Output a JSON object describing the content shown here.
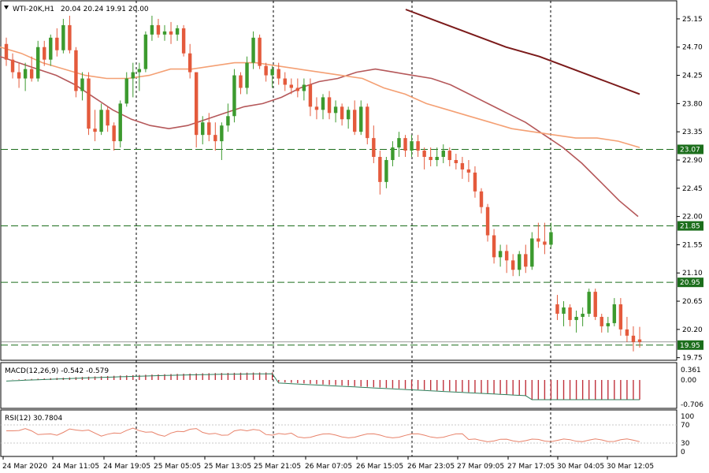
{
  "header": {
    "symbol_label": "WTI-20K,H1",
    "ohlc": "20.04 20.24 19.91 20.00"
  },
  "colors": {
    "bull": "#3c9a2e",
    "bear": "#e45a3c",
    "ma_fast": "#b5585a",
    "ma_mid": "#f4a074",
    "ma_slow": "#7b1a1a",
    "level": "#1c6e1c",
    "rsi": "#e8826a",
    "macd_hist": "#c0323c",
    "macd_signal": "#2e7d5a"
  },
  "macd": {
    "label": "MACD(12,26,9) -0.542 -0.579",
    "ticks": [
      "0.361",
      "0.00",
      "-0.706"
    ]
  },
  "rsi": {
    "label": "RSI(12) 30.7804",
    "ticks": [
      "100",
      "70",
      "30",
      "0"
    ]
  },
  "chart_data": {
    "type": "candlestick",
    "timeframe": "H1",
    "ylim": [
      19.75,
      25.3
    ],
    "y_ticks": [
      "25.15",
      "24.70",
      "24.25",
      "23.80",
      "23.35",
      "22.90",
      "22.45",
      "22.00",
      "21.55",
      "21.10",
      "20.65",
      "20.20",
      "19.75"
    ],
    "x_ticks": [
      "24 Mar 2020",
      "24 Mar 11:05",
      "24 Mar 19:05",
      "25 Mar 05:05",
      "25 Mar 13:05",
      "25 Mar 21:05",
      "26 Mar 07:05",
      "26 Mar 15:05",
      "26 Mar 23:05",
      "27 Mar 09:05",
      "27 Mar 17:05",
      "30 Mar 04:05",
      "30 Mar 12:05"
    ],
    "levels": [
      {
        "label": "23.07",
        "value": 23.07
      },
      {
        "label": "21.85",
        "value": 21.85
      },
      {
        "label": "20.95",
        "value": 20.95
      },
      {
        "label": "19.95",
        "value": 19.95
      }
    ],
    "candles": [
      [
        24.75,
        24.85,
        24.4,
        24.5
      ],
      [
        24.5,
        24.6,
        24.2,
        24.3
      ],
      [
        24.3,
        24.45,
        24.05,
        24.2
      ],
      [
        24.2,
        24.45,
        24.0,
        24.35
      ],
      [
        24.35,
        24.55,
        24.15,
        24.2
      ],
      [
        24.2,
        24.8,
        24.15,
        24.7
      ],
      [
        24.7,
        24.8,
        24.4,
        24.5
      ],
      [
        24.5,
        24.9,
        24.4,
        24.85
      ],
      [
        24.85,
        25.0,
        24.55,
        24.65
      ],
      [
        24.65,
        25.15,
        24.6,
        25.05
      ],
      [
        25.05,
        25.2,
        24.6,
        24.65
      ],
      [
        24.65,
        24.7,
        23.9,
        24.0
      ],
      [
        24.0,
        24.3,
        23.85,
        24.2
      ],
      [
        24.2,
        24.3,
        23.3,
        23.4
      ],
      [
        23.4,
        23.7,
        23.2,
        23.35
      ],
      [
        23.35,
        23.8,
        23.3,
        23.7
      ],
      [
        23.7,
        23.75,
        23.35,
        23.45
      ],
      [
        23.45,
        23.5,
        23.05,
        23.2
      ],
      [
        23.2,
        23.85,
        23.1,
        23.8
      ],
      [
        23.8,
        24.3,
        23.75,
        24.2
      ],
      [
        24.2,
        24.45,
        23.9,
        24.3
      ],
      [
        24.3,
        24.45,
        24.0,
        24.35
      ],
      [
        24.35,
        24.95,
        24.3,
        24.9
      ],
      [
        24.9,
        25.2,
        24.8,
        25.05
      ],
      [
        25.05,
        25.15,
        24.85,
        24.9
      ],
      [
        24.9,
        25.05,
        24.8,
        24.95
      ],
      [
        24.95,
        25.1,
        24.75,
        24.9
      ],
      [
        24.9,
        25.05,
        24.8,
        25.0
      ],
      [
        25.0,
        25.05,
        24.55,
        24.6
      ],
      [
        24.6,
        24.75,
        24.2,
        24.3
      ],
      [
        24.3,
        24.3,
        23.1,
        23.3
      ],
      [
        23.3,
        23.6,
        23.15,
        23.5
      ],
      [
        23.5,
        23.65,
        23.2,
        23.3
      ],
      [
        23.3,
        23.5,
        23.05,
        23.2
      ],
      [
        23.2,
        23.5,
        22.9,
        23.45
      ],
      [
        23.45,
        23.8,
        23.35,
        23.6
      ],
      [
        23.6,
        24.35,
        23.5,
        24.25
      ],
      [
        24.25,
        24.3,
        23.95,
        24.05
      ],
      [
        24.05,
        24.55,
        23.95,
        24.45
      ],
      [
        24.45,
        24.95,
        24.35,
        24.85
      ],
      [
        24.85,
        24.9,
        24.35,
        24.4
      ],
      [
        24.4,
        24.45,
        24.15,
        24.25
      ],
      [
        24.25,
        24.4,
        24.05,
        24.35
      ],
      [
        24.35,
        24.45,
        24.1,
        24.2
      ],
      [
        24.2,
        24.3,
        24.0,
        24.1
      ],
      [
        24.1,
        24.2,
        23.95,
        24.05
      ],
      [
        24.05,
        24.2,
        23.9,
        24.0
      ],
      [
        24.0,
        24.2,
        23.85,
        24.1
      ],
      [
        24.1,
        24.2,
        23.6,
        23.75
      ],
      [
        23.75,
        23.9,
        23.55,
        23.7
      ],
      [
        23.7,
        23.95,
        23.55,
        23.9
      ],
      [
        23.9,
        24.0,
        23.55,
        23.65
      ],
      [
        23.65,
        23.85,
        23.5,
        23.75
      ],
      [
        23.75,
        23.8,
        23.45,
        23.55
      ],
      [
        23.55,
        23.75,
        23.4,
        23.7
      ],
      [
        23.7,
        23.85,
        23.3,
        23.35
      ],
      [
        23.35,
        23.85,
        23.3,
        23.75
      ],
      [
        23.75,
        23.8,
        23.15,
        23.25
      ],
      [
        23.25,
        23.45,
        22.85,
        22.95
      ],
      [
        22.95,
        23.05,
        22.35,
        22.55
      ],
      [
        22.55,
        22.95,
        22.45,
        22.9
      ],
      [
        22.9,
        23.2,
        22.8,
        23.1
      ],
      [
        23.1,
        23.35,
        22.95,
        23.25
      ],
      [
        23.25,
        23.3,
        22.95,
        23.05
      ],
      [
        23.05,
        23.3,
        22.95,
        23.2
      ],
      [
        23.2,
        23.3,
        22.95,
        23.05
      ],
      [
        23.05,
        23.1,
        22.75,
        22.95
      ],
      [
        22.95,
        23.1,
        22.8,
        22.9
      ],
      [
        22.9,
        23.1,
        22.8,
        22.95
      ],
      [
        22.95,
        23.15,
        22.85,
        23.05
      ],
      [
        23.05,
        23.1,
        22.8,
        22.9
      ],
      [
        22.9,
        23.0,
        22.75,
        22.85
      ],
      [
        22.85,
        22.95,
        22.6,
        22.75
      ],
      [
        22.75,
        22.9,
        22.55,
        22.7
      ],
      [
        22.7,
        22.8,
        22.3,
        22.4
      ],
      [
        22.4,
        22.45,
        22.05,
        22.15
      ],
      [
        22.15,
        22.2,
        21.6,
        21.7
      ],
      [
        21.7,
        21.8,
        21.25,
        21.35
      ],
      [
        21.35,
        21.55,
        21.2,
        21.45
      ],
      [
        21.45,
        21.55,
        21.1,
        21.3
      ],
      [
        21.3,
        21.4,
        21.05,
        21.15
      ],
      [
        21.15,
        21.45,
        21.05,
        21.4
      ],
      [
        21.4,
        21.55,
        21.1,
        21.2
      ],
      [
        21.2,
        21.75,
        21.15,
        21.65
      ],
      [
        21.65,
        21.9,
        21.5,
        21.6
      ],
      [
        21.6,
        21.9,
        21.4,
        21.55
      ],
      [
        21.55,
        21.9,
        21.5,
        21.75
      ],
      [
        20.6,
        20.75,
        20.35,
        20.45
      ],
      [
        20.45,
        20.65,
        20.25,
        20.55
      ],
      [
        20.55,
        20.6,
        20.25,
        20.35
      ],
      [
        20.35,
        20.5,
        20.15,
        20.4
      ],
      [
        20.4,
        20.55,
        20.25,
        20.45
      ],
      [
        20.45,
        20.85,
        20.4,
        20.8
      ],
      [
        20.8,
        20.85,
        20.35,
        20.4
      ],
      [
        20.4,
        20.45,
        20.15,
        20.25
      ],
      [
        20.25,
        20.4,
        20.15,
        20.3
      ],
      [
        20.3,
        20.7,
        20.25,
        20.6
      ],
      [
        20.6,
        20.7,
        20.1,
        20.2
      ],
      [
        20.2,
        20.4,
        20.0,
        20.1
      ],
      [
        20.1,
        20.25,
        19.85,
        20.0
      ],
      [
        20.04,
        20.24,
        19.91,
        20.0
      ]
    ],
    "series": [
      {
        "values": [
          24.55,
          24.45,
          24.35,
          24.25,
          24.1,
          23.9,
          23.7,
          23.55,
          23.45,
          23.4,
          23.45,
          23.55,
          23.65,
          23.75,
          23.8,
          23.9,
          24.05,
          24.15,
          24.2,
          24.3,
          24.35,
          24.3,
          24.25,
          24.2,
          24.1,
          23.95,
          23.8,
          23.65,
          23.5,
          23.3,
          23.1,
          22.85,
          22.55,
          22.25,
          22.0
        ]
      },
      {
        "values": [
          24.7,
          24.6,
          24.45,
          24.35,
          24.25,
          24.2,
          24.2,
          24.25,
          24.35,
          24.35,
          24.4,
          24.45,
          24.45,
          24.4,
          24.35,
          24.3,
          24.25,
          24.2,
          24.05,
          23.95,
          23.8,
          23.7,
          23.6,
          23.5,
          23.4,
          23.35,
          23.3,
          23.25,
          23.25,
          23.2,
          23.1
        ]
      },
      {
        "values": [
          25.3,
          25.1,
          24.9,
          24.7,
          24.55,
          24.35,
          24.15,
          23.95
        ]
      }
    ]
  }
}
